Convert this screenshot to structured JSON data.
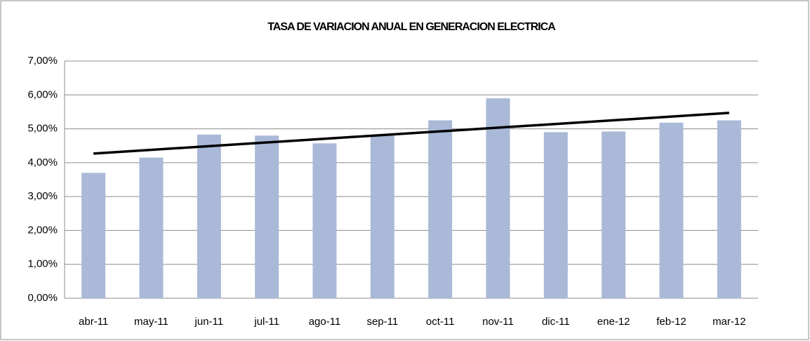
{
  "chart_data": {
    "type": "bar",
    "title": "TASA DE VARIACION ANUAL EN GENERACION ELECTRICA",
    "categories": [
      "abr-11",
      "may-11",
      "jun-11",
      "jul-11",
      "ago-11",
      "sep-11",
      "oct-11",
      "nov-11",
      "dic-11",
      "ene-12",
      "feb-12",
      "mar-12"
    ],
    "values": [
      3.7,
      4.15,
      4.83,
      4.8,
      4.57,
      4.8,
      5.25,
      5.9,
      4.9,
      4.92,
      5.18,
      5.25
    ],
    "color": "#a9b9d7",
    "trendline": {
      "start": 4.27,
      "end": 5.47,
      "color": "#000000"
    },
    "ylim": [
      0,
      7
    ],
    "yticks": [
      {
        "value": 0,
        "label": "0,00%"
      },
      {
        "value": 1,
        "label": "1,00%"
      },
      {
        "value": 2,
        "label": "2,00%"
      },
      {
        "value": 3,
        "label": "3,00%"
      },
      {
        "value": 4,
        "label": "4,00%"
      },
      {
        "value": 5,
        "label": "5,00%"
      },
      {
        "value": 6,
        "label": "6,00%"
      },
      {
        "value": 7,
        "label": "7,00%"
      }
    ],
    "grid": true
  }
}
